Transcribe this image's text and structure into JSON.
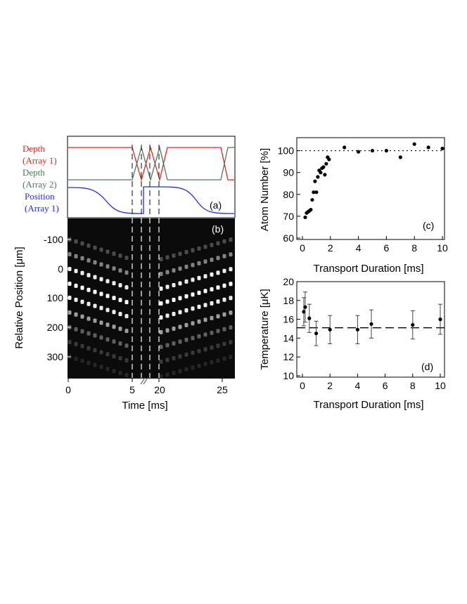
{
  "panel_a": {
    "labels": [
      {
        "text": "Depth",
        "color": "#e0261e"
      },
      {
        "text": "(Array 1)",
        "color": "#e0261e"
      },
      {
        "text": "Depth",
        "color": "#4a7a5c"
      },
      {
        "text": "(Array 2)",
        "color": "#4a7a5c"
      },
      {
        "text": "Position",
        "color": "#1f2ee0"
      },
      {
        "text": "(Array 1)",
        "color": "#1f2ee0"
      }
    ],
    "tag": "(a)"
  },
  "panel_b": {
    "tag": "(b)",
    "ylabel": "Relative Position [μm]",
    "xlabel": "Time [ms]",
    "yticks": [
      "-100",
      "0",
      "100",
      "200",
      "300"
    ],
    "xticks": [
      "0",
      "5",
      "20",
      "25"
    ]
  },
  "chart_data": [
    {
      "id": "c",
      "type": "scatter",
      "tag": "(c)",
      "xlabel": "Transport Duration [ms]",
      "ylabel": "Atom Number [%]",
      "xlim": [
        0,
        10
      ],
      "ylim": [
        60,
        105
      ],
      "xticks": [
        0,
        2,
        4,
        6,
        8,
        10
      ],
      "yticks": [
        60,
        70,
        80,
        90,
        100
      ],
      "reference_line": 100,
      "x": [
        0.2,
        0.3,
        0.4,
        0.5,
        0.6,
        0.7,
        0.8,
        0.9,
        1.0,
        1.1,
        1.2,
        1.3,
        1.4,
        1.5,
        1.6,
        1.7,
        1.8,
        1.9,
        3.0,
        4.0,
        5.0,
        6.0,
        7.0,
        8.0,
        9.0,
        10.0
      ],
      "y": [
        69.5,
        71.5,
        72,
        72.5,
        73,
        77.5,
        81,
        86,
        81,
        88,
        91,
        90,
        92,
        92.5,
        89,
        94,
        97,
        96,
        101.5,
        99.5,
        100,
        100,
        97,
        103,
        101.5,
        101
      ]
    },
    {
      "id": "d",
      "type": "scatter",
      "tag": "(d)",
      "xlabel": "Transport Duration [ms]",
      "ylabel": "Temperature [μK]",
      "xlim": [
        0,
        10
      ],
      "ylim": [
        10,
        20
      ],
      "xticks": [
        0,
        2,
        4,
        6,
        8,
        10
      ],
      "yticks": [
        10,
        12,
        14,
        16,
        18,
        20
      ],
      "reference_line": 15.1,
      "x": [
        0.1,
        0.2,
        0.5,
        1.0,
        2.0,
        4.0,
        5.0,
        8.0,
        10.0
      ],
      "y": [
        16.8,
        17.3,
        16.1,
        14.5,
        14.9,
        14.9,
        15.5,
        15.4,
        16.0
      ],
      "err": [
        1.5,
        1.6,
        1.5,
        1.3,
        1.5,
        1.5,
        1.5,
        1.5,
        1.6
      ]
    }
  ]
}
